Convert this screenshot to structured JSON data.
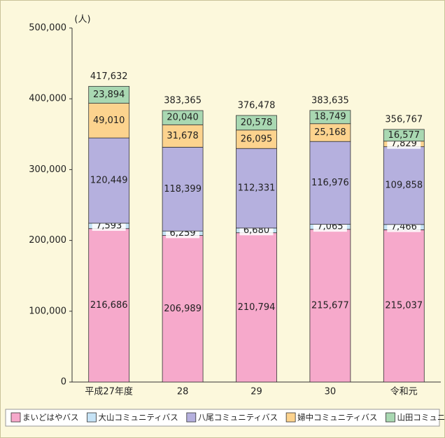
{
  "chart_data": {
    "type": "stacked-bar",
    "y_unit_label": "(人)",
    "categories": [
      "平成27年度",
      "28",
      "29",
      "30",
      "令和元"
    ],
    "series": [
      {
        "name": "まいどはやバス",
        "color": "#f6a9cb",
        "values": [
          216686,
          206989,
          210794,
          215677,
          215037
        ],
        "value_labels": [
          "216,686",
          "206,989",
          "210,794",
          "215,677",
          "215,037"
        ]
      },
      {
        "name": "大山コミュニティバス",
        "color": "#c6e3f6",
        "values": [
          7593,
          6259,
          6680,
          7065,
          7466
        ],
        "value_labels": [
          "7,593",
          "6,259",
          "6,680",
          "7,065",
          "7,466"
        ]
      },
      {
        "name": "八尾コミュニティバス",
        "color": "#b5b0de",
        "values": [
          120449,
          118399,
          112331,
          116976,
          109858
        ],
        "value_labels": [
          "120,449",
          "118,399",
          "112,331",
          "116,976",
          "109,858"
        ]
      },
      {
        "name": "婦中コミュニティバス",
        "color": "#fcd38e",
        "values": [
          49010,
          31678,
          26095,
          25168,
          7829
        ],
        "value_labels": [
          "49,010",
          "31,678",
          "26,095",
          "25,168",
          "7,829"
        ]
      },
      {
        "name": "山田コミュニティバス",
        "color": "#a9d8b2",
        "values": [
          23894,
          20040,
          20578,
          18749,
          16577
        ],
        "value_labels": [
          "23,894",
          "20,040",
          "20,578",
          "18,749",
          "16,577"
        ]
      }
    ],
    "totals": [
      417632,
      383365,
      376478,
      383635,
      356767
    ],
    "total_labels": [
      "417,632",
      "383,365",
      "376,478",
      "383,635",
      "356,767"
    ],
    "ylim": [
      0,
      500000
    ],
    "yticks": [
      0,
      {
        "value": 100000,
        "label": "100,000"
      },
      {
        "value": 200000,
        "label": "200,000"
      },
      {
        "value": 300000,
        "label": "300,000"
      },
      {
        "value": 400000,
        "label": "400,000"
      },
      {
        "value": 500000,
        "label": "500,000"
      }
    ]
  }
}
